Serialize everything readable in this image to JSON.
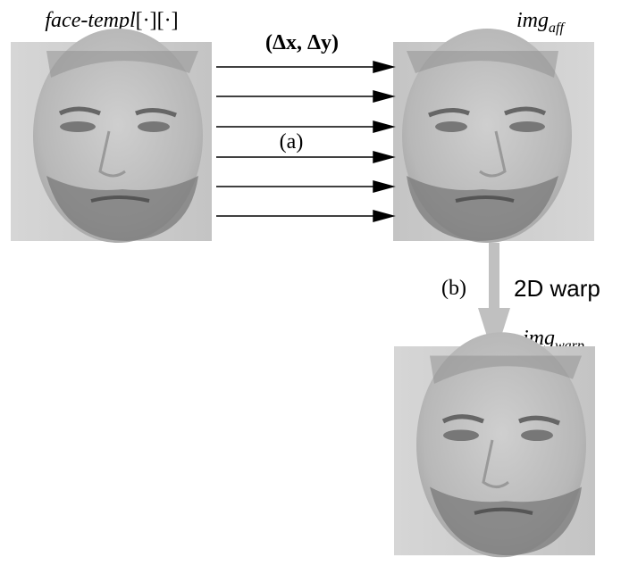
{
  "labels": {
    "template": {
      "base": "face-templ",
      "suffix": "[·][·]"
    },
    "affine": {
      "base": "img",
      "sub": "aff"
    },
    "warp": {
      "base": "img",
      "sub": "warp"
    },
    "displacement": "(Δx, Δy)",
    "step_a": "(a)",
    "step_b": "(b)",
    "warp_method": "2D warp"
  }
}
